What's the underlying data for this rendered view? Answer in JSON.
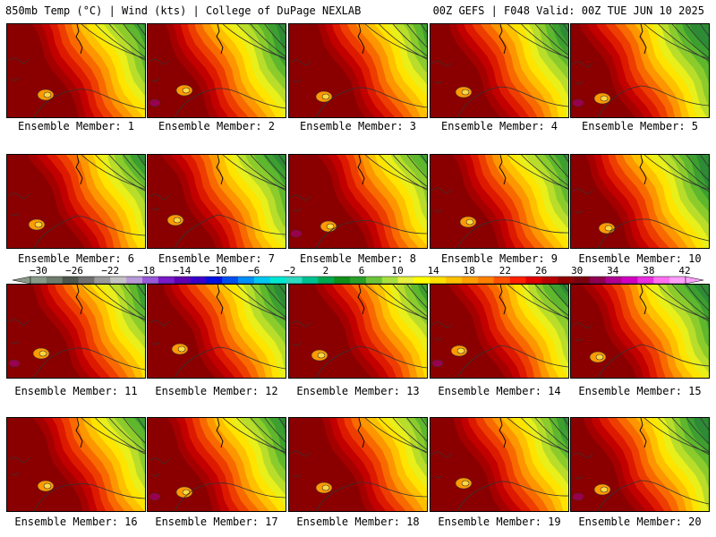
{
  "header": {
    "title_left": "850mb Temp (°C) | Wind (kts) | College of DuPage NEXLAB",
    "title_right": "00Z GEFS | F048 Valid: 00Z TUE JUN 10 2025"
  },
  "panels": [
    {
      "label": "Ensemble Member: 1",
      "member": 1
    },
    {
      "label": "Ensemble Member: 2",
      "member": 2
    },
    {
      "label": "Ensemble Member: 3",
      "member": 3
    },
    {
      "label": "Ensemble Member: 4",
      "member": 4
    },
    {
      "label": "Ensemble Member: 5",
      "member": 5
    },
    {
      "label": "Ensemble Member: 6",
      "member": 6
    },
    {
      "label": "Ensemble Member: 7",
      "member": 7
    },
    {
      "label": "Ensemble Member: 8",
      "member": 8
    },
    {
      "label": "Ensemble Member: 9",
      "member": 9
    },
    {
      "label": "Ensemble Member: 10",
      "member": 10
    },
    {
      "label": "Ensemble Member: 11",
      "member": 11
    },
    {
      "label": "Ensemble Member: 12",
      "member": 12
    },
    {
      "label": "Ensemble Member: 13",
      "member": 13
    },
    {
      "label": "Ensemble Member: 14",
      "member": 14
    },
    {
      "label": "Ensemble Member: 15",
      "member": 15
    },
    {
      "label": "Ensemble Member: 16",
      "member": 16
    },
    {
      "label": "Ensemble Member: 17",
      "member": 17
    },
    {
      "label": "Ensemble Member: 18",
      "member": 18
    },
    {
      "label": "Ensemble Member: 19",
      "member": 19
    },
    {
      "label": "Ensemble Member: 20",
      "member": 20
    }
  ],
  "colorbar": {
    "tick_labels": [
      "−30",
      "−26",
      "−22",
      "−18",
      "−14",
      "−10",
      "−6",
      "−2",
      "2",
      "6",
      "10",
      "14",
      "18",
      "22",
      "26",
      "30",
      "34",
      "38",
      "42"
    ],
    "colors": [
      "#8a9a8a",
      "#6e7d6e",
      "#4d574d",
      "#707070",
      "#9a9a9a",
      "#c3c3c3",
      "#b89ad8",
      "#9a5ad8",
      "#7a1ac8",
      "#6000b0",
      "#3a00c8",
      "#0010e0",
      "#0050f0",
      "#0090f8",
      "#00c8f0",
      "#00e8d0",
      "#30d8c0",
      "#00c090",
      "#00a850",
      "#10901a",
      "#2aa02a",
      "#6cc43a",
      "#a8e040",
      "#e8f040",
      "#ffff00",
      "#ffe000",
      "#ffc000",
      "#ffa000",
      "#ff8000",
      "#ff5000",
      "#ff2000",
      "#e00000",
      "#b80000",
      "#900000",
      "#7a0010",
      "#900050",
      "#b00090",
      "#d000c0",
      "#e830e0",
      "#ff70f0",
      "#ffa0ff"
    ]
  }
}
